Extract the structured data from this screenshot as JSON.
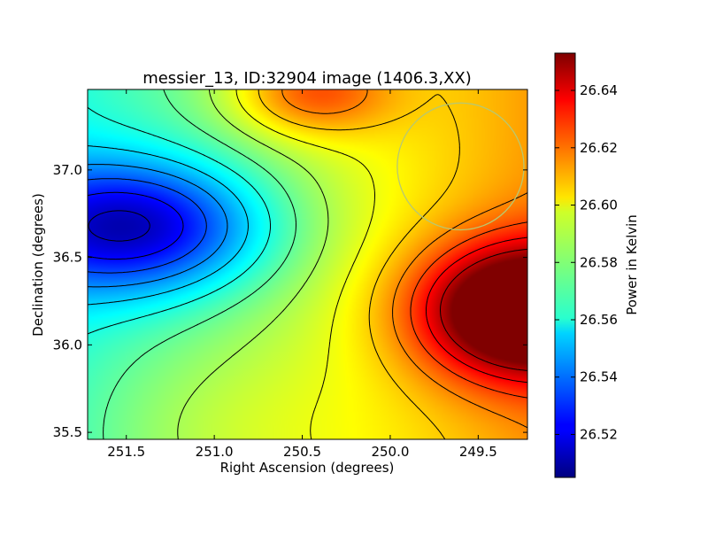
{
  "chart_data": {
    "type": "heatmap",
    "title": "messier_13, ID:32904 image (1406.3,XX)",
    "xlabel": "Right Ascension (degrees)",
    "ylabel": "Declination (degrees)",
    "xlim": [
      251.72,
      249.22
    ],
    "ylim": [
      35.46,
      37.46
    ],
    "x_ticks": [
      {
        "value": 251.5,
        "label": "251.5"
      },
      {
        "value": 251.0,
        "label": "251.0"
      },
      {
        "value": 250.5,
        "label": "250.5"
      },
      {
        "value": 250.0,
        "label": "250.0"
      },
      {
        "value": 249.5,
        "label": "249.5"
      }
    ],
    "y_ticks": [
      {
        "value": 35.5,
        "label": "35.5"
      },
      {
        "value": 36.0,
        "label": "36.0"
      },
      {
        "value": 36.5,
        "label": "36.5"
      },
      {
        "value": 37.0,
        "label": "37.0"
      }
    ],
    "colorbar": {
      "label": "Power in Kelvin",
      "range": [
        26.505,
        26.653
      ],
      "colormap": "jet",
      "ticks": [
        {
          "value": 26.52,
          "label": "26.52"
        },
        {
          "value": 26.54,
          "label": "26.54"
        },
        {
          "value": 26.56,
          "label": "26.56"
        },
        {
          "value": 26.58,
          "label": "26.58"
        },
        {
          "value": 26.6,
          "label": "26.60"
        },
        {
          "value": 26.62,
          "label": "26.62"
        },
        {
          "value": 26.64,
          "label": "26.64"
        }
      ]
    },
    "features": [
      {
        "kind": "minimum",
        "ra": 251.45,
        "dec": 36.68,
        "value": 26.505
      },
      {
        "kind": "maximum",
        "ra": 249.25,
        "dec": 36.2,
        "value": 26.653
      },
      {
        "kind": "local-peak",
        "ra": 250.45,
        "dec": 37.45,
        "value": 26.62
      }
    ],
    "beam_circle": {
      "ra": 249.6,
      "dec": 37.02,
      "radius_deg": 0.36,
      "color": "#b8c870"
    },
    "contour_color": "#000000"
  }
}
